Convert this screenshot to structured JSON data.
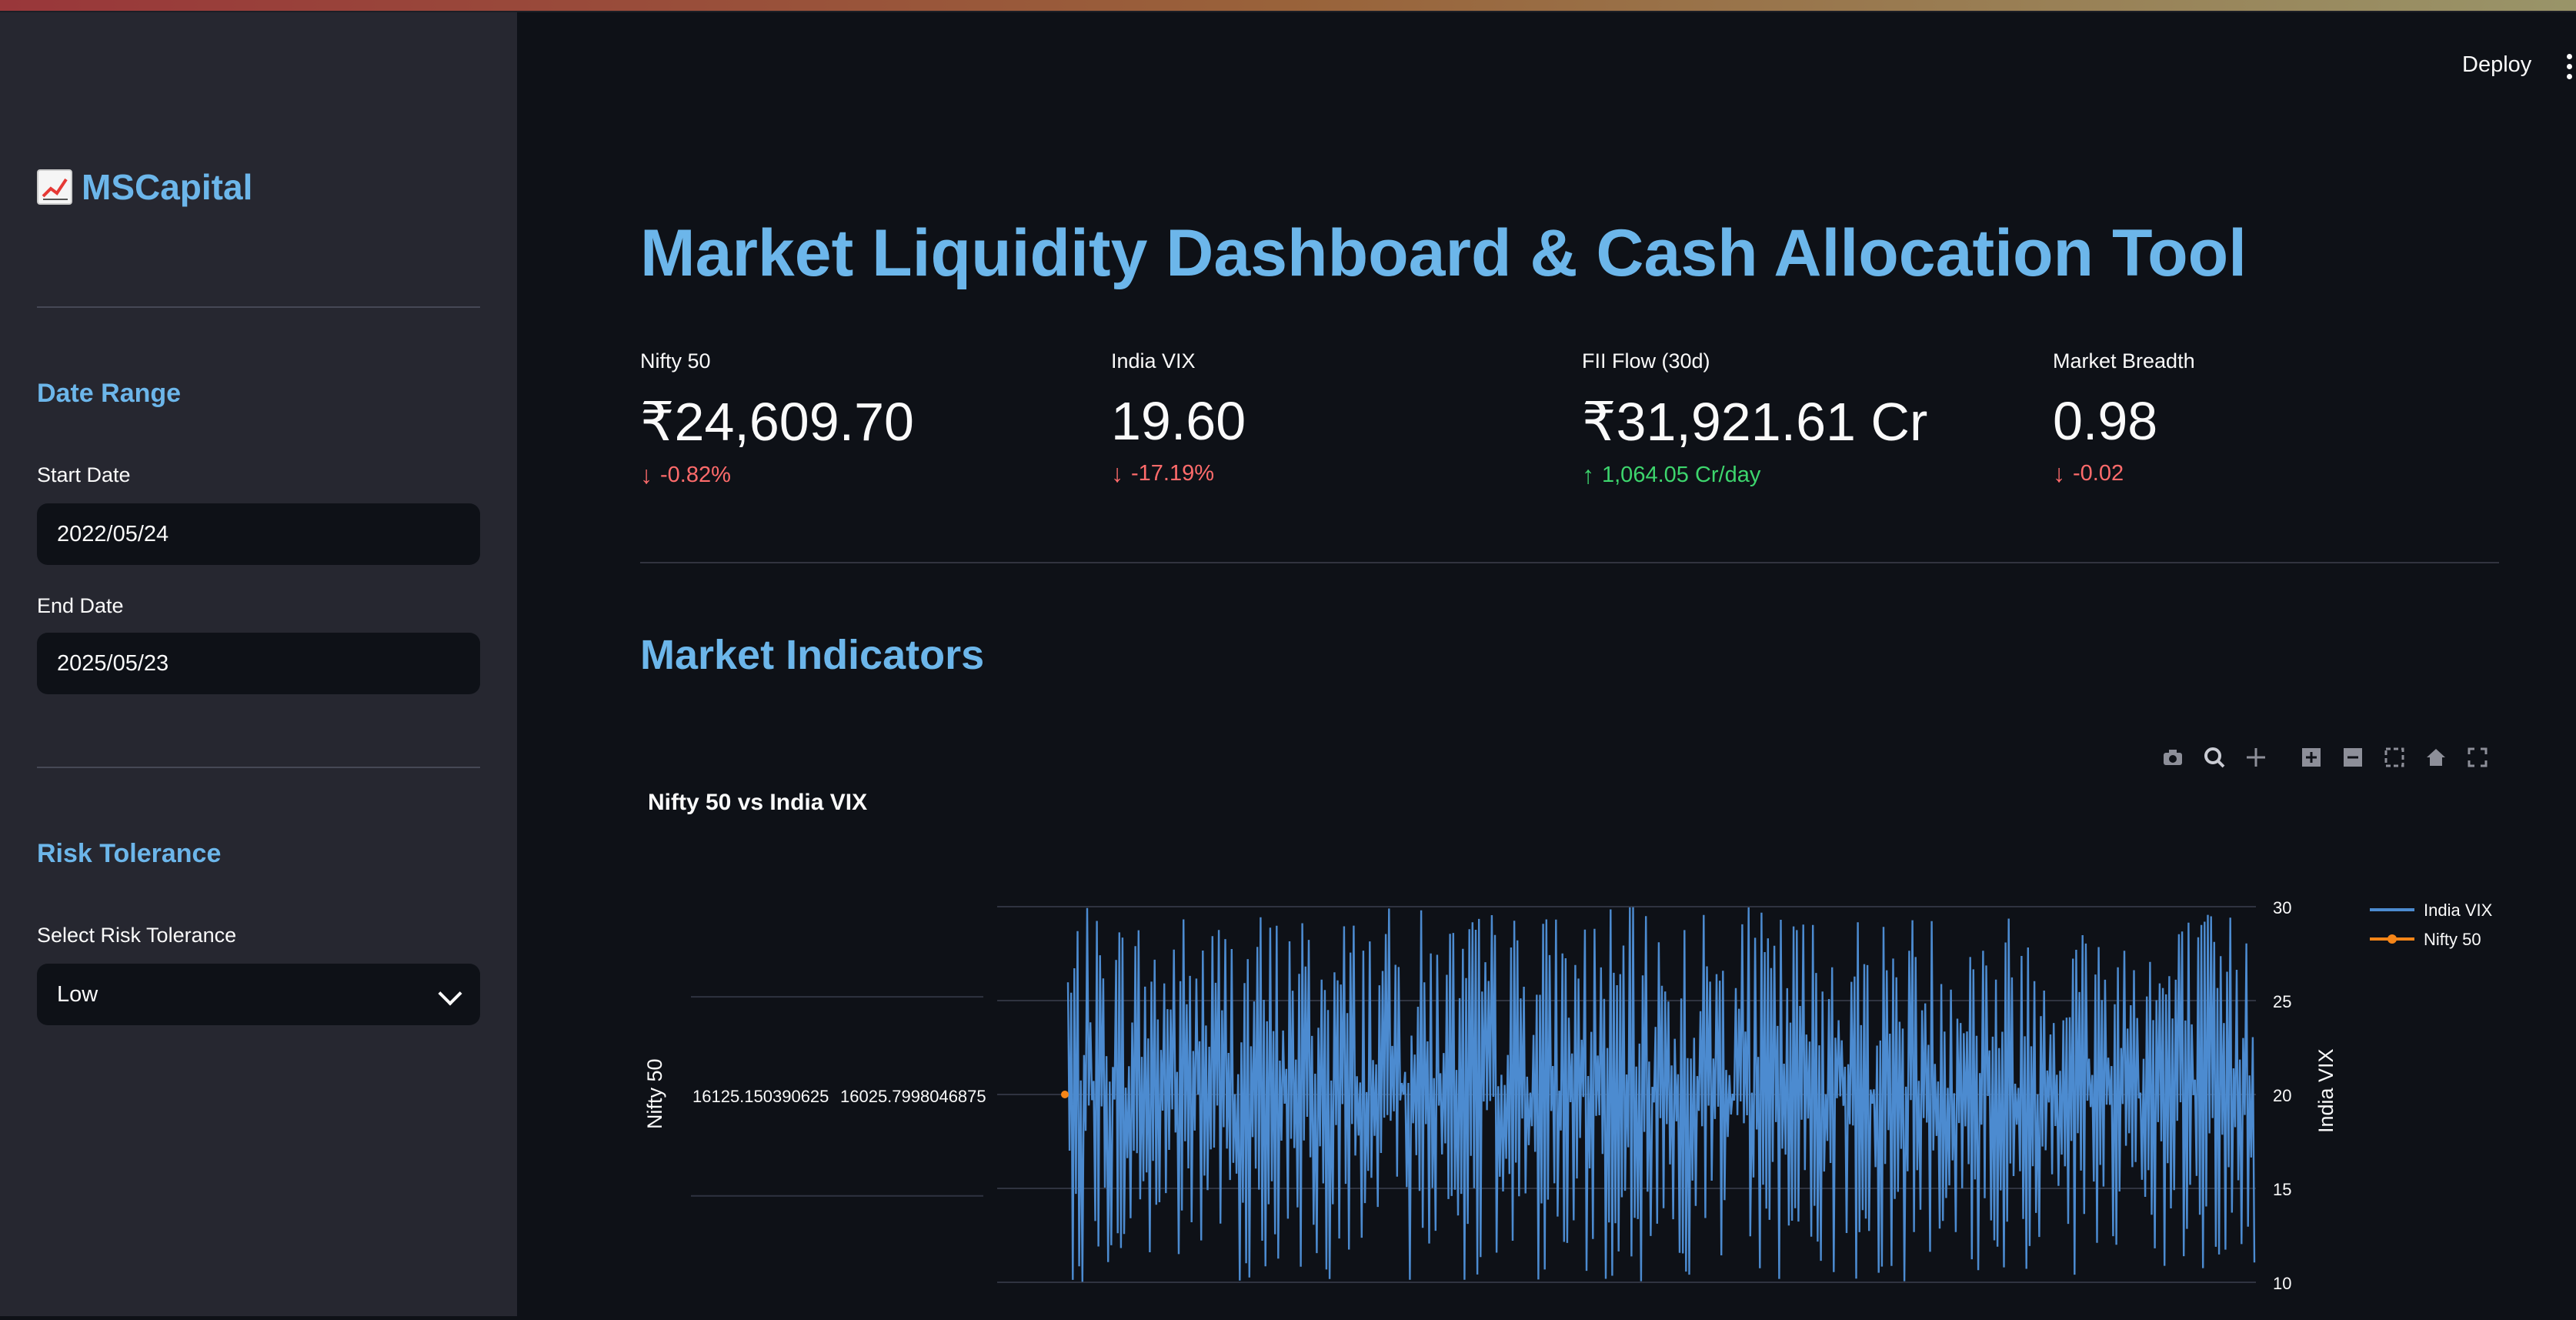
{
  "sidebar": {
    "brand": "MSCapital",
    "date_range": {
      "heading": "Date Range",
      "start_label": "Start Date",
      "start_value": "2022/05/24",
      "end_label": "End Date",
      "end_value": "2025/05/23"
    },
    "risk": {
      "heading": "Risk Tolerance",
      "select_label": "Select Risk Tolerance",
      "select_value": "Low"
    }
  },
  "header": {
    "deploy_label": "Deploy"
  },
  "main": {
    "title": "Market Liquidity Dashboard & Cash Allocation Tool",
    "metrics": [
      {
        "label": "Nifty 50",
        "value": "₹24,609.70",
        "delta": "-0.82%",
        "direction": "down"
      },
      {
        "label": "India VIX",
        "value": "19.60",
        "delta": "-17.19%",
        "direction": "down"
      },
      {
        "label": "FII Flow (30d)",
        "value": "₹31,921.61 Cr",
        "delta": "1,064.05 Cr/day",
        "direction": "up"
      },
      {
        "label": "Market Breadth",
        "value": "0.98",
        "delta": "-0.02",
        "direction": "down"
      }
    ],
    "section_heading": "Market Indicators"
  },
  "colors": {
    "accent": "#6cb6ea",
    "vix": "#4c8bd0",
    "nifty": "#f58518",
    "negative": "#ff6b6b",
    "positive": "#3dd56d"
  },
  "chart_data": {
    "type": "line",
    "title": "Nifty 50 vs India VIX",
    "ylabel": "Nifty 50",
    "y2label": "India VIX",
    "y_ticks": [
      "16125.150390625",
      "16025.7998046875"
    ],
    "y2_ticks": [
      "30",
      "25",
      "20",
      "15",
      "10"
    ],
    "y2lim": [
      10,
      30
    ],
    "legend_position": "top-right",
    "series": [
      {
        "name": "India VIX",
        "axis": "y2",
        "n_points": 740,
        "range": [
          10,
          30
        ],
        "mean": 20
      },
      {
        "name": "Nifty 50",
        "axis": "y",
        "marker": true,
        "values": [
          16125.150390625,
          16025.7998046875
        ]
      }
    ]
  }
}
